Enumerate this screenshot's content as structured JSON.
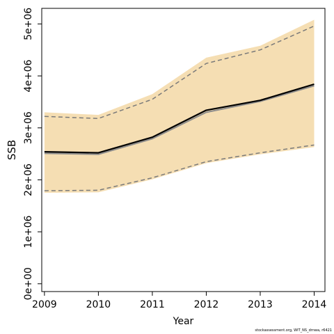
{
  "chart_data": {
    "type": "line",
    "xlabel": "Year",
    "ylabel": "SSB",
    "x": [
      2009,
      2010,
      2011,
      2012,
      2013,
      2014
    ],
    "xticks": [
      "2009",
      "2010",
      "2011",
      "2012",
      "2013",
      "2014"
    ],
    "yticks": [
      "0e+00",
      "1e+06",
      "2e+06",
      "3e+06",
      "4e+06",
      "5e+06"
    ],
    "ytick_values": [
      0,
      1000000,
      2000000,
      3000000,
      4000000,
      5000000
    ],
    "xlim": [
      2008.95,
      2014.2
    ],
    "ylim": [
      -150000,
      5300000
    ],
    "band": {
      "upper": [
        3300000,
        3250000,
        3650000,
        4350000,
        4580000,
        5080000
      ],
      "lower": [
        1750000,
        1760000,
        2010000,
        2320000,
        2490000,
        2630000
      ]
    },
    "series": [
      {
        "values": [
          2540000,
          2520000,
          2820000,
          3340000,
          3530000,
          3840000
        ],
        "style": "solid-black"
      },
      {
        "values": [
          2510000,
          2490000,
          2790000,
          3300000,
          3510000,
          3810000
        ],
        "style": "solid-gray"
      },
      {
        "values": [
          3220000,
          3180000,
          3550000,
          4240000,
          4500000,
          4960000
        ],
        "style": "dashed-upper"
      },
      {
        "values": [
          1790000,
          1800000,
          2040000,
          2350000,
          2520000,
          2670000
        ],
        "style": "dashed-lower"
      }
    ],
    "colors": {
      "band": "#f5deb3",
      "line": "#000000",
      "line2": "#8c8c8c",
      "dashed": "#7a7a7a",
      "axis": "#000000"
    },
    "grid": false,
    "legend": "none"
  },
  "footer": "stockassessment.org, WIT_NS_drnwa, r6421"
}
